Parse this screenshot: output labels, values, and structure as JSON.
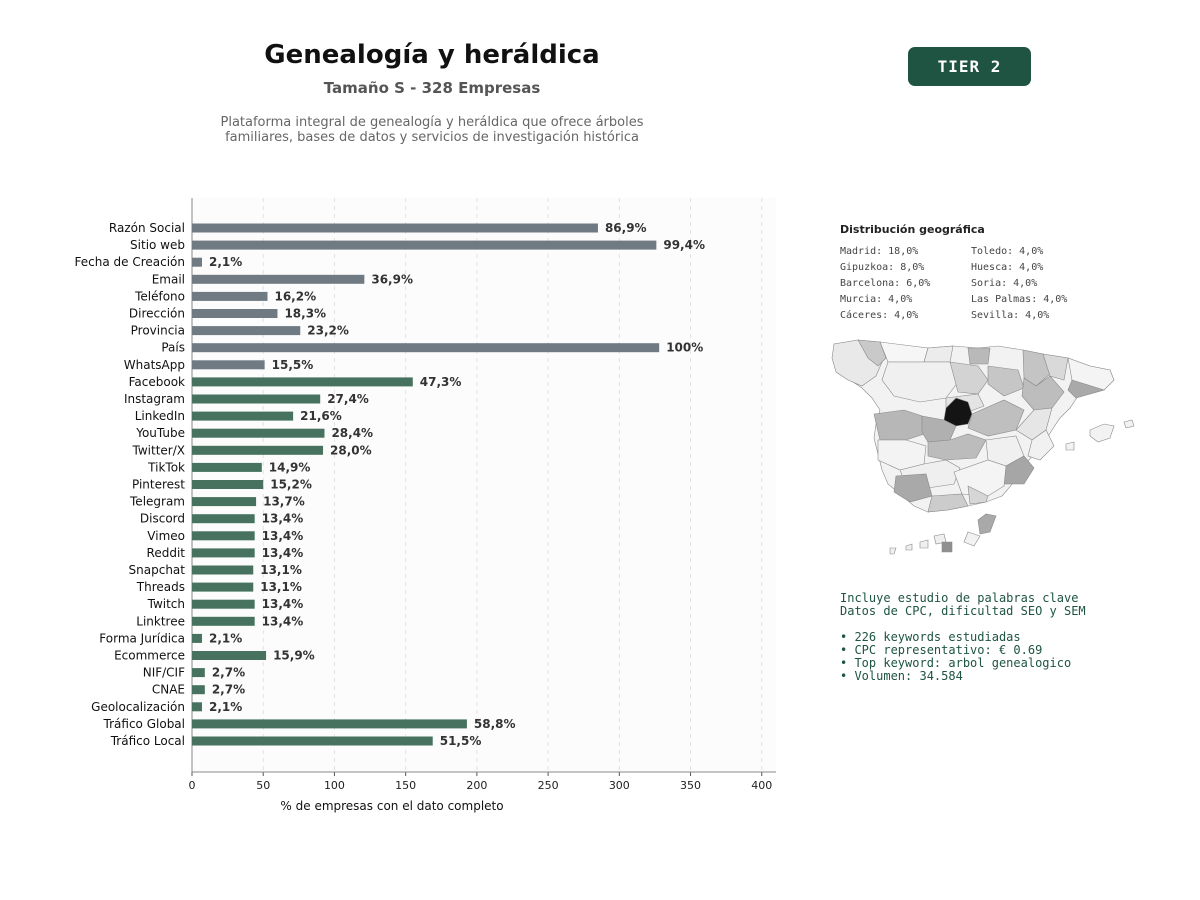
{
  "header": {
    "title": "Genealogía y heráldica",
    "subtitle": "Tamaño S - 328 Empresas",
    "description_line1": "Plataforma integral de genealogía y heráldica que ofrece árboles",
    "description_line2": "familiares, bases de datos y servicios de investigación histórica",
    "tier_badge": "TIER 2"
  },
  "colors": {
    "basic_bar": "#6f7a83",
    "social_bar": "#46725f",
    "tier_bg": "#1e5441",
    "keyword_text": "#1e5441"
  },
  "chart_data": {
    "type": "bar",
    "orientation": "horizontal",
    "xlabel": "% de empresas con el dato completo",
    "xlim": [
      0,
      410
    ],
    "xticks": [
      0,
      50,
      100,
      150,
      200,
      250,
      300,
      350,
      400
    ],
    "grid": true,
    "categories": [
      "Razón Social",
      "Sitio web",
      "Fecha de Creación",
      "Email",
      "Teléfono",
      "Dirección",
      "Provincia",
      "País",
      "WhatsApp",
      "Facebook",
      "Instagram",
      "LinkedIn",
      "YouTube",
      "Twitter/X",
      "TikTok",
      "Pinterest",
      "Telegram",
      "Discord",
      "Vimeo",
      "Reddit",
      "Snapchat",
      "Threads",
      "Twitch",
      "Linktree",
      "Forma Jurídica",
      "Ecommerce",
      "NIF/CIF",
      "CNAE",
      "Geolocalización",
      "Tráfico Global",
      "Tráfico Local"
    ],
    "values": [
      285,
      326,
      7,
      121,
      53,
      60,
      76,
      328,
      51,
      155,
      90,
      71,
      93,
      92,
      49,
      50,
      45,
      44,
      44,
      44,
      43,
      43,
      44,
      44,
      7,
      52,
      9,
      9,
      7,
      193,
      169
    ],
    "labels": [
      "86,9%",
      "99,4%",
      "2,1%",
      "36,9%",
      "16,2%",
      "18,3%",
      "23,2%",
      "100%",
      "15,5%",
      "47,3%",
      "27,4%",
      "21,6%",
      "28,4%",
      "28,0%",
      "14,9%",
      "15,2%",
      "13,7%",
      "13,4%",
      "13,4%",
      "13,4%",
      "13,1%",
      "13,1%",
      "13,4%",
      "13,4%",
      "2,1%",
      "15,9%",
      "2,7%",
      "2,7%",
      "2,1%",
      "58,8%",
      "51,5%"
    ],
    "groups": [
      "basic",
      "basic",
      "basic",
      "basic",
      "basic",
      "basic",
      "basic",
      "basic",
      "basic",
      "social",
      "social",
      "social",
      "social",
      "social",
      "social",
      "social",
      "social",
      "social",
      "social",
      "social",
      "social",
      "social",
      "social",
      "social",
      "social",
      "social",
      "social",
      "social",
      "social",
      "social",
      "social"
    ]
  },
  "geo": {
    "title": "Distribución geográfica",
    "items": [
      "Madrid: 18,0%",
      "Toledo: 4,0%",
      "Gipuzkoa: 8,0%",
      "Huesca: 4,0%",
      "Barcelona: 6,0%",
      "Soria: 4,0%",
      "Murcia: 4,0%",
      "Las Palmas: 4,0%",
      "Cáceres: 4,0%",
      "Sevilla: 4,0%"
    ]
  },
  "keywords": {
    "line1": "Incluye estudio de palabras clave",
    "line2": "Datos de CPC, dificultad SEO y SEM",
    "bullets": [
      "• 226 keywords estudiadas",
      "• CPC representativo: € 0.69",
      "• Top keyword: arbol genealogico",
      "• Volumen: 34.584"
    ]
  }
}
